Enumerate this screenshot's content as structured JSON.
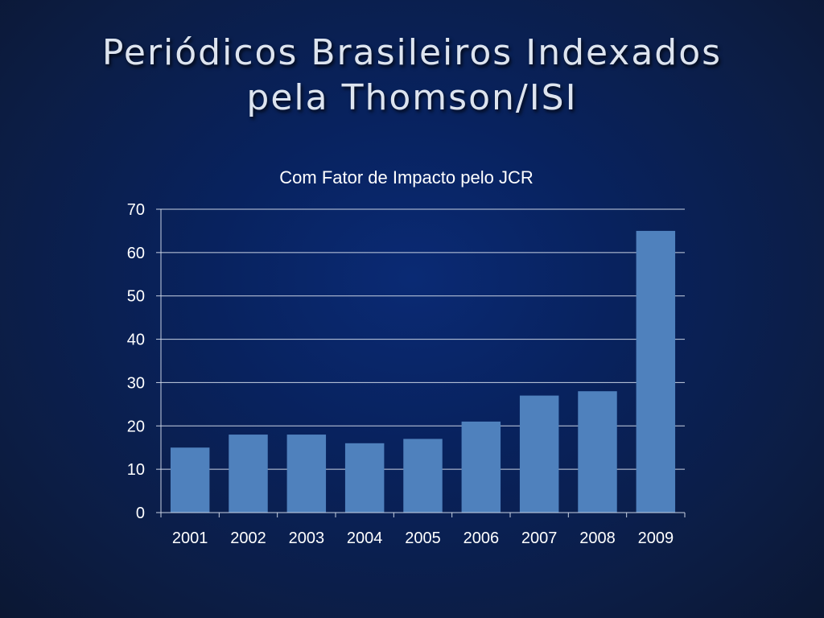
{
  "slide": {
    "title_line1": "Periódicos Brasileiros Indexados",
    "title_line2": "pela Thomson/ISI"
  },
  "chart_data": {
    "type": "bar",
    "title": "Com Fator de Impacto pelo JCR",
    "categories": [
      "2001",
      "2002",
      "2003",
      "2004",
      "2005",
      "2006",
      "2007",
      "2008",
      "2009"
    ],
    "values": [
      15,
      18,
      18,
      16,
      17,
      21,
      27,
      28,
      65
    ],
    "xlabel": "",
    "ylabel": "",
    "ylim": [
      0,
      70
    ],
    "yticks": [
      0,
      10,
      20,
      30,
      40,
      50,
      60,
      70
    ],
    "grid": true,
    "legend": "none",
    "bar_color": "#4f81bd"
  }
}
